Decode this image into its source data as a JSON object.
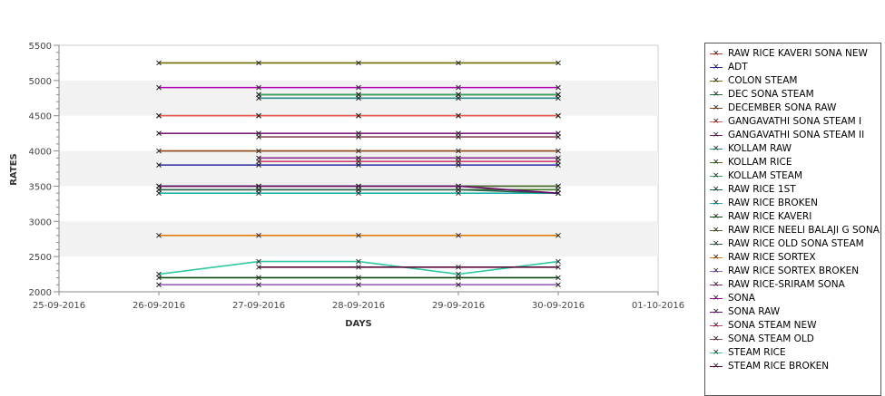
{
  "chart_data": {
    "type": "line",
    "xlabel": "DAYS",
    "ylabel": "RATES",
    "ylim": [
      2000,
      5500
    ],
    "yticks": [
      "2000",
      "2500",
      "3000",
      "3500",
      "4000",
      "4500",
      "5000",
      "5500"
    ],
    "xticks": [
      "25-09-2016",
      "26-09-2016",
      "27-09-2016",
      "28-09-2016",
      "29-09-2016",
      "30-09-2016",
      "01-10-2016"
    ],
    "x": [
      "26-09-2016",
      "27-09-2016",
      "28-09-2016",
      "29-09-2016",
      "30-09-2016"
    ],
    "legend_position": "right",
    "series": [
      {
        "name": " RAW RICE KAVERI SONA NEW",
        "color": "#c0392b",
        "values": [
          4500,
          4500,
          4500,
          4500,
          4500
        ]
      },
      {
        "name": "ADT",
        "color": "#2c2ca8",
        "values": [
          3800,
          3800,
          3800,
          3800,
          3800
        ]
      },
      {
        "name": "COLON STEAM",
        "color": "#6b6b00",
        "values": [
          5250,
          5250,
          5250,
          5250,
          5250
        ]
      },
      {
        "name": "DEC SONA STEAM",
        "color": "#1f7a3a",
        "values": [
          null,
          4800,
          4800,
          4800,
          4800
        ]
      },
      {
        "name": "DECEMBER SONA RAW",
        "color": "#8b4513",
        "values": [
          4000,
          4000,
          4000,
          4000,
          4000
        ]
      },
      {
        "name": "GANGAVATHI SONA STEAM I",
        "color": "#e85a4f",
        "values": [
          4500,
          4500,
          4500,
          4500,
          4500
        ]
      },
      {
        "name": "GANGAVATHI SONA STEAM II",
        "color": "#7a1f7a",
        "values": [
          4250,
          4250,
          4250,
          4250,
          4250
        ]
      },
      {
        "name": "KOLLAM RAW",
        "color": "#2a8a8a",
        "values": [
          null,
          4750,
          4750,
          4750,
          4750
        ]
      },
      {
        "name": "KOLLAM RICE",
        "color": "#3a7a1f",
        "values": [
          3450,
          3450,
          3450,
          3450,
          3450
        ]
      },
      {
        "name": "KOLLAM STEAM",
        "color": "#3aa05a",
        "values": [
          null,
          4800,
          4800,
          4800,
          4800
        ]
      },
      {
        "name": "RAW RICE 1ST",
        "color": "#1a6a5a",
        "values": [
          3500,
          3500,
          3500,
          3500,
          3500
        ]
      },
      {
        "name": "RAW RICE BROKEN",
        "color": "#20b2aa",
        "values": [
          3400,
          3400,
          3400,
          3400,
          3400
        ]
      },
      {
        "name": "RAW RICE KAVERI",
        "color": "#0a4a0a",
        "values": [
          2200,
          2200,
          2200,
          2200,
          2200
        ]
      },
      {
        "name": "RAW RICE NEELI BALAJI G SONA",
        "color": "#556b2f",
        "values": [
          3500,
          3500,
          3500,
          3500,
          3500
        ]
      },
      {
        "name": "RAW RICE OLD SONA STEAM",
        "color": "#2f5f4f",
        "values": [
          3450,
          3450,
          3450,
          3450,
          3400
        ]
      },
      {
        "name": "RAW RICE SORTEX",
        "color": "#e07b00",
        "values": [
          2800,
          2800,
          2800,
          2800,
          2800
        ]
      },
      {
        "name": "RAW RICE SORTEX BROKEN",
        "color": "#9a5fc0",
        "values": [
          2100,
          2100,
          2100,
          2100,
          2100
        ]
      },
      {
        "name": "RAW RICE-SRIRAM SONA",
        "color": "#8a2a8a",
        "values": [
          null,
          3900,
          3900,
          3900,
          3900
        ]
      },
      {
        "name": "SONA",
        "color": "#b000b0",
        "values": [
          4900,
          4900,
          4900,
          4900,
          4900
        ]
      },
      {
        "name": "SONA RAW",
        "color": "#6a0a6a",
        "values": [
          3500,
          3500,
          3500,
          3500,
          3400
        ]
      },
      {
        "name": "SONA STEAM NEW",
        "color": "#d04070",
        "values": [
          null,
          3850,
          3850,
          3850,
          3850
        ]
      },
      {
        "name": "SONA STEAM OLD",
        "color": "#8a4a5a",
        "values": [
          null,
          4200,
          4200,
          4200,
          4200
        ]
      },
      {
        "name": "STEAM RICE",
        "color": "#30c8a0",
        "values": [
          2250,
          2430,
          2430,
          2250,
          2430
        ]
      },
      {
        "name": "STEAM RICE BROKEN",
        "color": "#5a0a3a",
        "values": [
          null,
          2350,
          2350,
          2350,
          2350
        ]
      }
    ]
  }
}
